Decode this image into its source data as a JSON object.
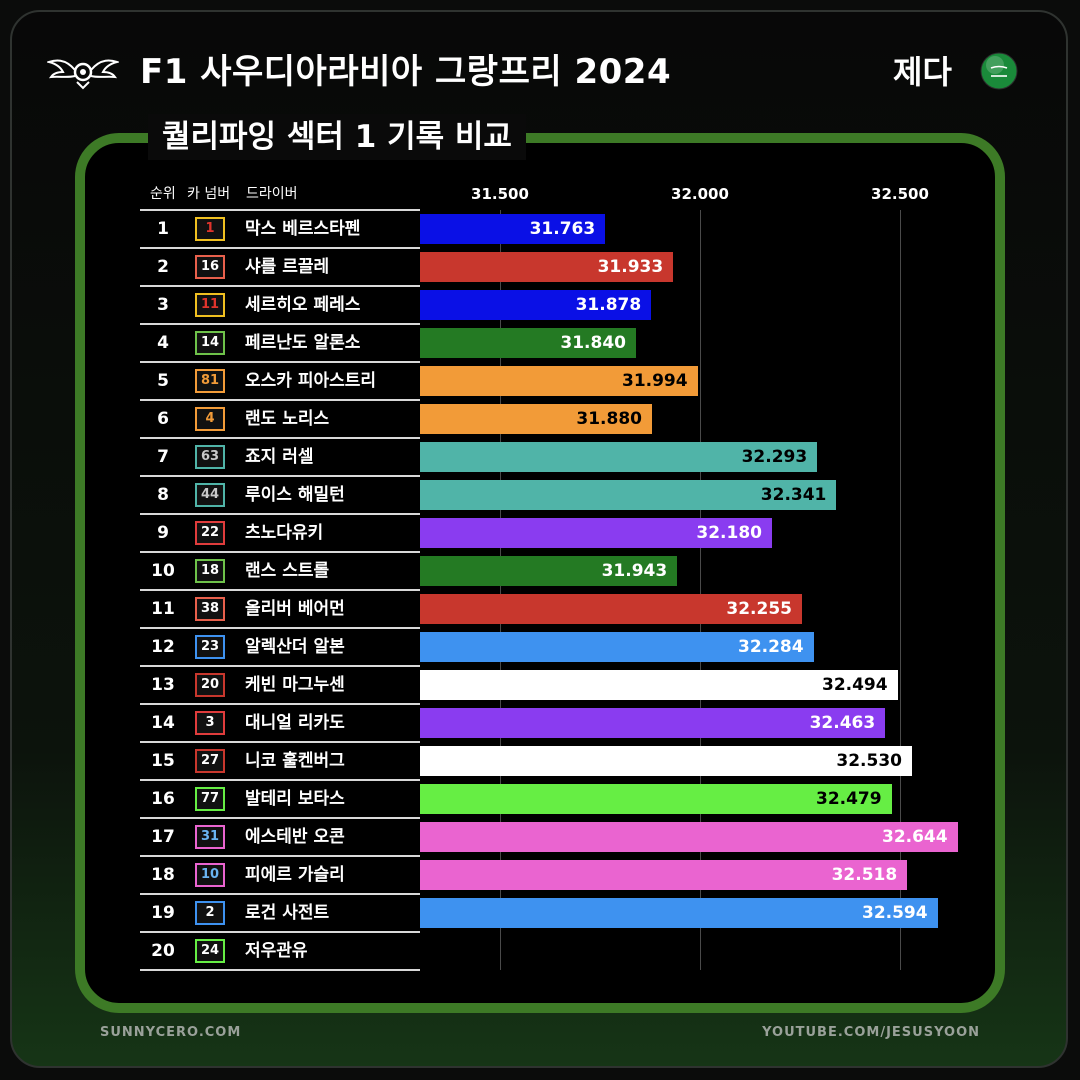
{
  "header": {
    "title": "F1 사우디아라비아 그랑프리 2024",
    "location": "제다",
    "logo_icon": "winged-wheel-icon",
    "flag_icon": "saudi-flag-icon"
  },
  "subtitle": "퀄리파잉 섹터 1 기록 비교",
  "columns": {
    "rank": "순위",
    "car_number": "카 넘버",
    "driver": "드라이버"
  },
  "footer": {
    "left": "SUNNYCERO.COM",
    "right": "YOUTUBE.COM/JESUSYOON"
  },
  "colors": {
    "panel_border": "#3d7a26",
    "background": "#0b0c0b",
    "gridline": "#4a4a4a"
  },
  "chart_data": {
    "type": "bar",
    "orientation": "horizontal",
    "title": "퀄리파잉 섹터 1 기록 비교",
    "xlim": [
      31.3,
      32.75
    ],
    "xticks": [
      31.5,
      32.0,
      32.5
    ],
    "xtick_labels": [
      "31.500",
      "32.000",
      "32.500"
    ],
    "grid": true,
    "rows": [
      {
        "rank": "1",
        "number": "1",
        "driver": "막스 베르스타펜",
        "value": 31.763,
        "label": "31.763",
        "color": "#0a10e6",
        "badge_border": "#f0c020",
        "badge_text": "#e0342c",
        "label_color": "#ffffff"
      },
      {
        "rank": "2",
        "number": "16",
        "driver": "샤를 르끌레",
        "value": 31.933,
        "label": "31.933",
        "color": "#c8372d",
        "badge_border": "#e8604c",
        "badge_text": "#ffffff",
        "label_color": "#ffffff"
      },
      {
        "rank": "3",
        "number": "11",
        "driver": "세르히오 페레스",
        "value": 31.878,
        "label": "31.878",
        "color": "#0a10e6",
        "badge_border": "#f0c020",
        "badge_text": "#e0342c",
        "label_color": "#ffffff"
      },
      {
        "rank": "4",
        "number": "14",
        "driver": "페르난도 알론소",
        "value": 31.84,
        "label": "31.840",
        "color": "#247a23",
        "badge_border": "#6ec24a",
        "badge_text": "#ffffff",
        "label_color": "#ffffff"
      },
      {
        "rank": "5",
        "number": "81",
        "driver": "오스카 피아스트리",
        "value": 31.994,
        "label": "31.994",
        "color": "#f29b38",
        "badge_border": "#f29b38",
        "badge_text": "#f29b38",
        "label_color": "#000000"
      },
      {
        "rank": "6",
        "number": "4",
        "driver": "랜도 노리스",
        "value": 31.88,
        "label": "31.880",
        "color": "#f29b38",
        "badge_border": "#f29b38",
        "badge_text": "#f29b38",
        "label_color": "#000000"
      },
      {
        "rank": "7",
        "number": "63",
        "driver": "죠지 러셀",
        "value": 32.293,
        "label": "32.293",
        "color": "#50b4a8",
        "badge_border": "#50b4a8",
        "badge_text": "#c8c8c8",
        "label_color": "#000000"
      },
      {
        "rank": "8",
        "number": "44",
        "driver": "루이스 해밀턴",
        "value": 32.341,
        "label": "32.341",
        "color": "#50b4a8",
        "badge_border": "#50b4a8",
        "badge_text": "#c8c8c8",
        "label_color": "#000000"
      },
      {
        "rank": "9",
        "number": "22",
        "driver": "츠노다유키",
        "value": 32.18,
        "label": "32.180",
        "color": "#8a3cf0",
        "badge_border": "#e03c3c",
        "badge_text": "#ffffff",
        "label_color": "#ffffff"
      },
      {
        "rank": "10",
        "number": "18",
        "driver": "랜스 스트롤",
        "value": 31.943,
        "label": "31.943",
        "color": "#247a23",
        "badge_border": "#6ec24a",
        "badge_text": "#ffffff",
        "label_color": "#ffffff"
      },
      {
        "rank": "11",
        "number": "38",
        "driver": "올리버 베어먼",
        "value": 32.255,
        "label": "32.255",
        "color": "#c8372d",
        "badge_border": "#e8604c",
        "badge_text": "#ffffff",
        "label_color": "#ffffff"
      },
      {
        "rank": "12",
        "number": "23",
        "driver": "알렉산더 알본",
        "value": 32.284,
        "label": "32.284",
        "color": "#3e92f0",
        "badge_border": "#3e92f0",
        "badge_text": "#ffffff",
        "label_color": "#ffffff"
      },
      {
        "rank": "13",
        "number": "20",
        "driver": "케빈 마그누센",
        "value": 32.494,
        "label": "32.494",
        "color": "#ffffff",
        "badge_border": "#c8372d",
        "badge_text": "#ffffff",
        "label_color": "#000000"
      },
      {
        "rank": "14",
        "number": "3",
        "driver": "대니얼 리카도",
        "value": 32.463,
        "label": "32.463",
        "color": "#8a3cf0",
        "badge_border": "#e03c3c",
        "badge_text": "#ffffff",
        "label_color": "#ffffff"
      },
      {
        "rank": "15",
        "number": "27",
        "driver": "니코 훌켄버그",
        "value": 32.53,
        "label": "32.530",
        "color": "#ffffff",
        "badge_border": "#c8372d",
        "badge_text": "#ffffff",
        "label_color": "#000000"
      },
      {
        "rank": "16",
        "number": "77",
        "driver": "발테리 보타스",
        "value": 32.479,
        "label": "32.479",
        "color": "#66ee44",
        "badge_border": "#66ee44",
        "badge_text": "#ffffff",
        "label_color": "#000000"
      },
      {
        "rank": "17",
        "number": "31",
        "driver": "에스테반 오콘",
        "value": 32.644,
        "label": "32.644",
        "color": "#ea64d0",
        "badge_border": "#ea64d0",
        "badge_text": "#6ab4f0",
        "label_color": "#ffffff"
      },
      {
        "rank": "18",
        "number": "10",
        "driver": "피에르 가슬리",
        "value": 32.518,
        "label": "32.518",
        "color": "#ea64d0",
        "badge_border": "#ea64d0",
        "badge_text": "#6ab4f0",
        "label_color": "#ffffff"
      },
      {
        "rank": "19",
        "number": "2",
        "driver": "로건 사전트",
        "value": 32.594,
        "label": "32.594",
        "color": "#3e92f0",
        "badge_border": "#3e92f0",
        "badge_text": "#ffffff",
        "label_color": "#ffffff"
      },
      {
        "rank": "20",
        "number": "24",
        "driver": "저우관유",
        "value": null,
        "label": "",
        "color": "#000000",
        "badge_border": "#66ee44",
        "badge_text": "#ffffff",
        "label_color": "#ffffff"
      }
    ]
  }
}
